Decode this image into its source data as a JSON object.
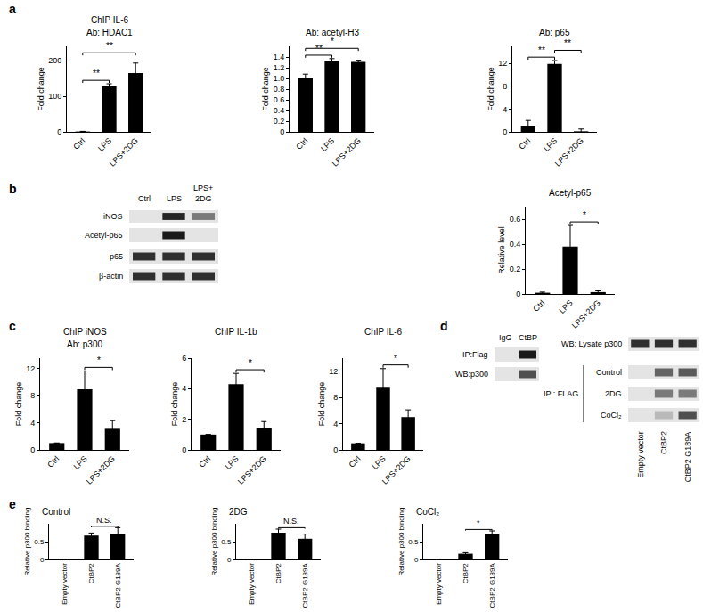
{
  "panel_labels": [
    "a",
    "b",
    "c",
    "d",
    "e"
  ],
  "chart_data": [
    {
      "type": "bar",
      "supertitle": "ChIP IL-6",
      "title": "Ab: HDAC1",
      "y_label": "Fold change",
      "categories": [
        "Ctrl",
        "LPS",
        "LPS+2DG"
      ],
      "values": [
        1,
        128,
        165
      ],
      "errors": [
        0.5,
        7,
        28
      ],
      "color": "#000000",
      "ylim": [
        0,
        240
      ],
      "yticks": [
        0,
        100,
        200
      ],
      "grid": false,
      "significance": [
        {
          "between": [
            "Ctrl",
            "LPS"
          ],
          "label": "**"
        },
        {
          "between": [
            "Ctrl",
            "LPS+2DG"
          ],
          "label": "**"
        }
      ]
    },
    {
      "type": "bar",
      "title": "Ab: acetyl-H3",
      "y_label": "Fold change",
      "categories": [
        "Ctrl",
        "LPS",
        "LPS+2DG"
      ],
      "values": [
        1.0,
        1.33,
        1.31
      ],
      "errors": [
        0.08,
        0.04,
        0.03
      ],
      "color": "#000000",
      "ylim": [
        0,
        1.6
      ],
      "yticks": [
        0,
        0.2,
        0.4,
        0.6,
        0.8,
        {
          "value": 1,
          "label": "1.0"
        },
        1.2,
        1.4
      ],
      "grid": false,
      "significance": [
        {
          "between": [
            "Ctrl",
            "LPS"
          ],
          "label": "**"
        },
        {
          "between": [
            "Ctrl",
            "LPS+2DG"
          ],
          "label": "*"
        }
      ]
    },
    {
      "type": "bar",
      "title": "Ab: p65",
      "y_label": "Fold change",
      "categories": [
        "Ctrl",
        "LPS",
        "LPS+2DG"
      ],
      "values": [
        1,
        11.9,
        0.1
      ],
      "errors": [
        1.0,
        0.6,
        0.4
      ],
      "color": "#000000",
      "ylim": [
        0,
        15
      ],
      "yticks": [
        0,
        4,
        8,
        12
      ],
      "grid": false,
      "significance": [
        {
          "between": [
            "Ctrl",
            "LPS"
          ],
          "label": "**"
        },
        {
          "between": [
            "LPS",
            "LPS+2DG"
          ],
          "label": "**"
        }
      ]
    },
    {
      "type": "bar",
      "title": "Acetyl-p65",
      "y_label": "Relative level",
      "categories": [
        "Ctrl",
        "LPS",
        "LPS+2DG"
      ],
      "values": [
        0.01,
        0.38,
        0.015
      ],
      "errors": [
        0.005,
        0.17,
        0.01
      ],
      "color": "#000000",
      "ylim": [
        0,
        0.7
      ],
      "yticks": [
        0,
        0.2,
        0.4,
        0.6
      ],
      "grid": false,
      "significance": [
        {
          "between": [
            "LPS",
            "LPS+2DG"
          ],
          "label": "*"
        }
      ]
    },
    {
      "type": "bar",
      "supertitle": "ChIP iNOS",
      "title": "Ab: p300",
      "y_label": "Fold change",
      "categories": [
        "Ctrl",
        "LPS",
        "LPS+2DG"
      ],
      "values": [
        1,
        8.9,
        3.1
      ],
      "errors": [
        0,
        2.7,
        1.2
      ],
      "color": "#000000",
      "ylim": [
        0,
        13.5
      ],
      "yticks": [
        0,
        4,
        8,
        12
      ],
      "grid": false,
      "significance": [
        {
          "between": [
            "LPS",
            "LPS+2DG"
          ],
          "label": "*"
        }
      ]
    },
    {
      "type": "bar",
      "supertitle": "ChIP IL-1b",
      "y_label": "Fold change",
      "categories": [
        "Ctrl",
        "LPS",
        "LPS+2DG"
      ],
      "values": [
        1,
        4.3,
        1.45
      ],
      "errors": [
        0,
        0.7,
        0.4
      ],
      "color": "#000000",
      "ylim": [
        0,
        6
      ],
      "yticks": [
        0,
        2,
        4,
        6
      ],
      "grid": false,
      "significance": [
        {
          "between": [
            "LPS",
            "LPS+2DG"
          ],
          "label": "*"
        }
      ]
    },
    {
      "type": "bar",
      "supertitle": "ChIP IL-6",
      "y_label": "Fold change",
      "categories": [
        "Ctrl",
        "LPS",
        "LPS+2DG"
      ],
      "values": [
        1,
        9.6,
        5.0
      ],
      "errors": [
        0,
        2.8,
        1.1
      ],
      "color": "#000000",
      "ylim": [
        0,
        14
      ],
      "yticks": [
        0,
        4,
        8,
        12
      ],
      "grid": false,
      "significance": [
        {
          "between": [
            "LPS",
            "LPS+2DG"
          ],
          "label": "*"
        }
      ]
    },
    {
      "type": "bar",
      "title": "Control",
      "y_label": "Relative p300 binding",
      "categories": [
        "Empty vector",
        "CtBP2",
        "CtBP2 G189A"
      ],
      "values": [
        0,
        0.67,
        0.71
      ],
      "errors": [
        0,
        0.07,
        0.18
      ],
      "color": "#000000",
      "ylim": [
        0,
        1
      ],
      "yticks": [
        0,
        0.5
      ],
      "grid": false,
      "significance": [
        {
          "between": [
            "CtBP2",
            "CtBP2 G189A"
          ],
          "label": "N.S."
        }
      ]
    },
    {
      "type": "bar",
      "title": "2DG",
      "y_label": "Relative p300 binding",
      "categories": [
        "Empty vector",
        "CtBP2",
        "CtBP2 G189A"
      ],
      "values": [
        0,
        0.75,
        0.58
      ],
      "errors": [
        0,
        0.1,
        0.13
      ],
      "color": "#000000",
      "ylim": [
        0,
        1
      ],
      "yticks": [
        0,
        0.5
      ],
      "grid": false,
      "significance": [
        {
          "between": [
            "CtBP2",
            "CtBP2 G189A"
          ],
          "label": "N.S."
        }
      ]
    },
    {
      "type": "bar",
      "title": "CoCl₂",
      "y_label": "Relative p300 binding",
      "categories": [
        "Empty vector",
        "CtBP2",
        "CtBP2 G189A"
      ],
      "values": [
        0,
        0.16,
        0.72
      ],
      "errors": [
        0,
        0.03,
        0.08
      ],
      "color": "#000000",
      "ylim": [
        0,
        1
      ],
      "yticks": [
        0,
        0.5
      ],
      "grid": false,
      "significance": [
        {
          "between": [
            "CtBP2",
            "CtBP2 G189A"
          ],
          "label": "*"
        }
      ]
    }
  ],
  "blots": [
    {
      "columns": [
        [
          "Ctrl"
        ],
        [
          "LPS"
        ],
        [
          "LPS+",
          "2DG"
        ]
      ],
      "rows": [
        {
          "label": "iNOS",
          "bands": [
            0,
            0.9,
            0.5
          ]
        },
        {
          "label": "Acetyl-p65",
          "bands": [
            0,
            0.95,
            0
          ]
        },
        {
          "label": "p65",
          "bands": [
            0.85,
            0.85,
            0.85
          ]
        },
        {
          "label": "β-actin",
          "bands": [
            0.85,
            0.85,
            0.85
          ]
        }
      ]
    },
    {
      "columns": [
        [
          "IgG"
        ],
        [
          "CtBP"
        ]
      ],
      "rows": [
        {
          "label": "IP:Flag",
          "bands": [
            0,
            0.95
          ]
        },
        {
          "label": "WB:p300",
          "bands": [
            0,
            0.7
          ]
        }
      ]
    },
    {
      "columns": [
        [
          "Empty vector"
        ],
        [
          "CtBP2"
        ],
        [
          "CtBP2 G189A"
        ]
      ],
      "rows": [
        {
          "label": "WB: Lysate p300",
          "bands": [
            0.85,
            0.85,
            0.85
          ]
        },
        {
          "label": "Control",
          "bands": [
            0,
            0.6,
            0.65
          ]
        },
        {
          "label": "2DG",
          "bands": [
            0,
            0.5,
            0.5
          ]
        },
        {
          "label": "CoCl₂",
          "bands": [
            0,
            0.2,
            0.7
          ]
        }
      ],
      "groups": [
        {
          "label": "IP : FLAG",
          "rows": [
            "Control",
            "CoCl₂"
          ]
        }
      ]
    }
  ]
}
